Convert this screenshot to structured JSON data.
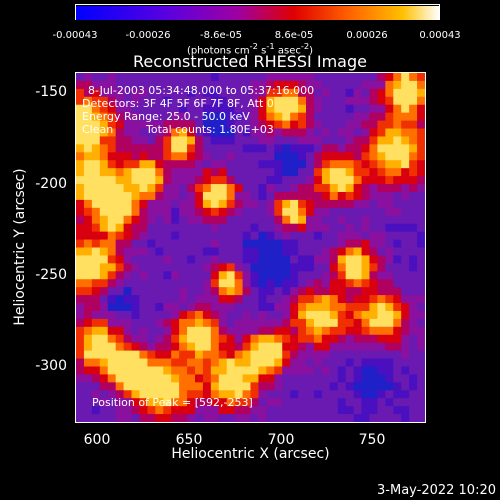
{
  "colorbar": {
    "tick_labels": [
      "-0.00043",
      "-0.00026",
      "-8.6e-05",
      "8.6e-05",
      "0.00026",
      "0.00043"
    ],
    "units_text": "(photons cm",
    "units_sup1": "-2",
    "units_mid": " s",
    "units_sup2": "-1",
    "units_end": " asec",
    "units_sup3": "-2",
    "units_close": ")"
  },
  "plot": {
    "title": "Reconstructed RHESSI Image",
    "xlabel": "Heliocentric X (arcsec)",
    "ylabel": "Heliocentric Y (arcsec)",
    "x_ticks": [
      "600",
      "650",
      "700",
      "750"
    ],
    "y_ticks": [
      "-150",
      "-200",
      "-250",
      "-300"
    ],
    "annotations": {
      "time_range": "8-Jul-2003 05:34:48.000 to 05:37:16.000",
      "detectors": "Detectors: 3F 4F 5F 6F 7F 8F, Att 0",
      "energy": "Energy Range: 25.0 - 50.0 keV",
      "clean": "Clean",
      "counts": "Total counts: 1.80E+03",
      "peak": "Position of Peak = [592,-253]"
    }
  },
  "chart_data": {
    "type": "heatmap",
    "title": "Reconstructed RHESSI Image",
    "xlabel": "Heliocentric X (arcsec)",
    "ylabel": "Heliocentric Y (arcsec)",
    "xlim": [
      590,
      780
    ],
    "ylim": [
      -332,
      -142
    ],
    "colorscale_range": [
      -0.00043,
      0.00043
    ],
    "colorscale_ticks": [
      -0.00043,
      -0.00026,
      -8.6e-05,
      8.6e-05,
      0.00026,
      0.00043
    ]
  },
  "timestamp": "3-May-2022 10:20"
}
